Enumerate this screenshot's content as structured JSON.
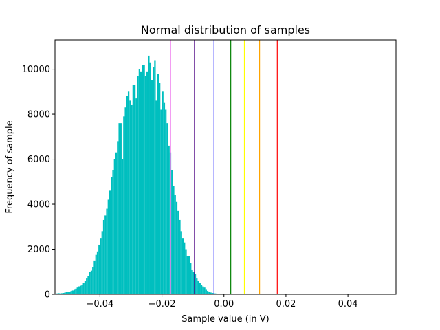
{
  "chart_data": {
    "type": "bar",
    "title": "Normal distribution of samples",
    "xlabel": "Sample value (in V)",
    "ylabel": "Frequency of sample",
    "xlim": [
      -0.0545,
      0.0555
    ],
    "ylim": [
      0,
      11300
    ],
    "xticks": [
      {
        "value": -0.04,
        "label": "−0.04"
      },
      {
        "value": -0.02,
        "label": "−0.02"
      },
      {
        "value": 0.0,
        "label": "0.00"
      },
      {
        "value": 0.02,
        "label": "0.02"
      },
      {
        "value": 0.04,
        "label": "0.04"
      }
    ],
    "yticks": [
      {
        "value": 0,
        "label": "0"
      },
      {
        "value": 2000,
        "label": "2000"
      },
      {
        "value": 4000,
        "label": "4000"
      },
      {
        "value": 6000,
        "label": "6000"
      },
      {
        "value": 8000,
        "label": "8000"
      },
      {
        "value": 10000,
        "label": "10000"
      }
    ],
    "grid": false,
    "histogram": {
      "color": "#00bfbf",
      "bin_start": -0.0545,
      "bin_width": 0.0005,
      "values": [
        30,
        40,
        50,
        40,
        50,
        60,
        80,
        100,
        100,
        120,
        150,
        170,
        200,
        250,
        300,
        350,
        380,
        420,
        500,
        600,
        700,
        800,
        1000,
        1050,
        1200,
        1500,
        1750,
        1900,
        2200,
        2500,
        2800,
        3300,
        3500,
        3800,
        4200,
        4600,
        5200,
        5500,
        6000,
        6300,
        6800,
        7600,
        7600,
        6000,
        7900,
        8300,
        8800,
        9000,
        8600,
        8400,
        9300,
        9300,
        8700,
        9700,
        10000,
        9900,
        10200,
        10200,
        9700,
        9900,
        10600,
        10300,
        9500,
        10100,
        10400,
        8600,
        9800,
        9400,
        8200,
        9000,
        8500,
        8200,
        7600,
        6600,
        6300,
        5500,
        4800,
        4400,
        4100,
        3700,
        3300,
        2800,
        2500,
        2300,
        2000,
        1700,
        1700,
        1400,
        1100,
        1000,
        900,
        700,
        600,
        500,
        400,
        350,
        300,
        200,
        150,
        100,
        80,
        60,
        50,
        40,
        30,
        20,
        10,
        10,
        5,
        5,
        3,
        2,
        0,
        0,
        0,
        0,
        0,
        0,
        0,
        0,
        0,
        0,
        0,
        0,
        0,
        0,
        0,
        0,
        0,
        0,
        0,
        0,
        0,
        0,
        0,
        0,
        0,
        0,
        0,
        0,
        0,
        0,
        0,
        0,
        0,
        0,
        0,
        0,
        0,
        0,
        0,
        0,
        0,
        0,
        0,
        0,
        0,
        0,
        0,
        0,
        0,
        0,
        0,
        0,
        0,
        0,
        0,
        0,
        0,
        0,
        0,
        0,
        0,
        0,
        0,
        0,
        0,
        0,
        0,
        0,
        0,
        0,
        0,
        0,
        0,
        0,
        0,
        0,
        0,
        0,
        0,
        0,
        0,
        0,
        0,
        0,
        0,
        0,
        0,
        0,
        0,
        0,
        0,
        0,
        0,
        0,
        0,
        0,
        0,
        0,
        0,
        0,
        0,
        0,
        0,
        0,
        0,
        0,
        0
      ]
    },
    "vertical_lines": [
      {
        "x": -0.0172,
        "color": "#ee82ee"
      },
      {
        "x": -0.0095,
        "color": "#4b0082"
      },
      {
        "x": -0.0032,
        "color": "#0000ff"
      },
      {
        "x": 0.0022,
        "color": "#008000"
      },
      {
        "x": 0.0066,
        "color": "#ffff00"
      },
      {
        "x": 0.0115,
        "color": "#ffa500"
      },
      {
        "x": 0.0172,
        "color": "#ff0000"
      }
    ]
  }
}
